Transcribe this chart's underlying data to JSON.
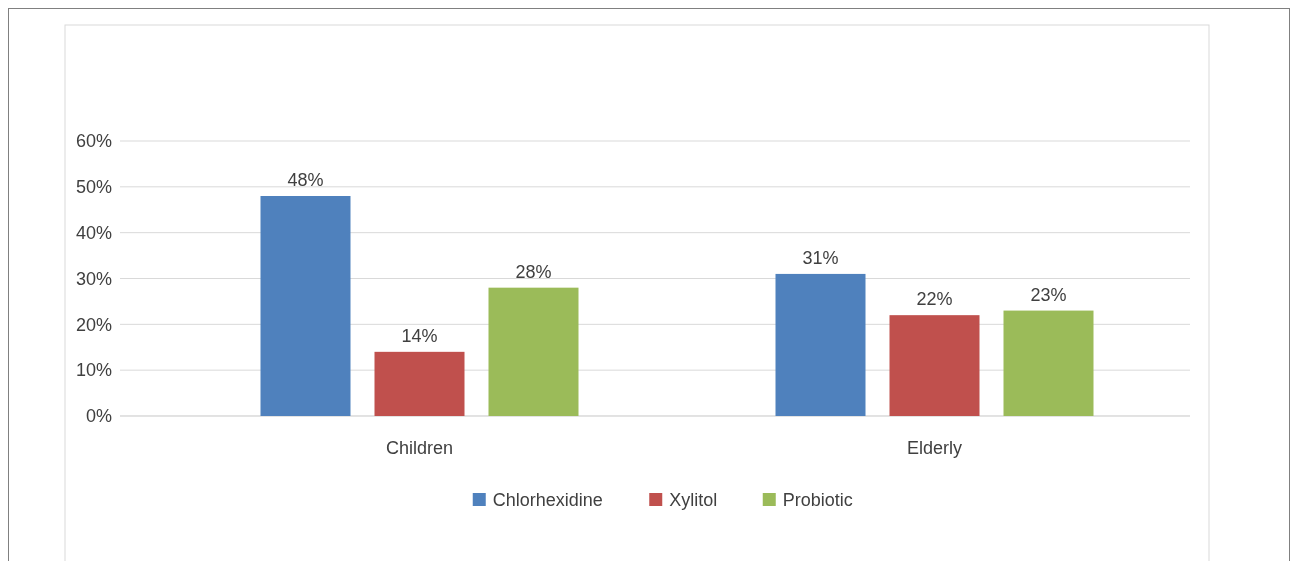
{
  "chart_data": {
    "type": "bar",
    "categories": [
      "Children",
      "Elderly"
    ],
    "series": [
      {
        "name": "Chlorhexidine",
        "color": "#4f81bd",
        "values": [
          48,
          31
        ],
        "value_labels": [
          "48%",
          "31%"
        ]
      },
      {
        "name": "Xylitol",
        "color": "#c0504d",
        "values": [
          14,
          22
        ],
        "value_labels": [
          "14%",
          "22%"
        ]
      },
      {
        "name": "Probiotic",
        "color": "#9bbb59",
        "values": [
          28,
          23
        ],
        "value_labels": [
          "28%",
          "23%"
        ]
      }
    ],
    "ylim": [
      0,
      60
    ],
    "yticks": [
      {
        "value": 0,
        "label": "0%"
      },
      {
        "value": 10,
        "label": "10%"
      },
      {
        "value": 20,
        "label": "20%"
      },
      {
        "value": 30,
        "label": "30%"
      },
      {
        "value": 40,
        "label": "40%"
      },
      {
        "value": 50,
        "label": "50%"
      },
      {
        "value": 60,
        "label": "60%"
      }
    ],
    "grid": "y",
    "legend": "bottom"
  }
}
